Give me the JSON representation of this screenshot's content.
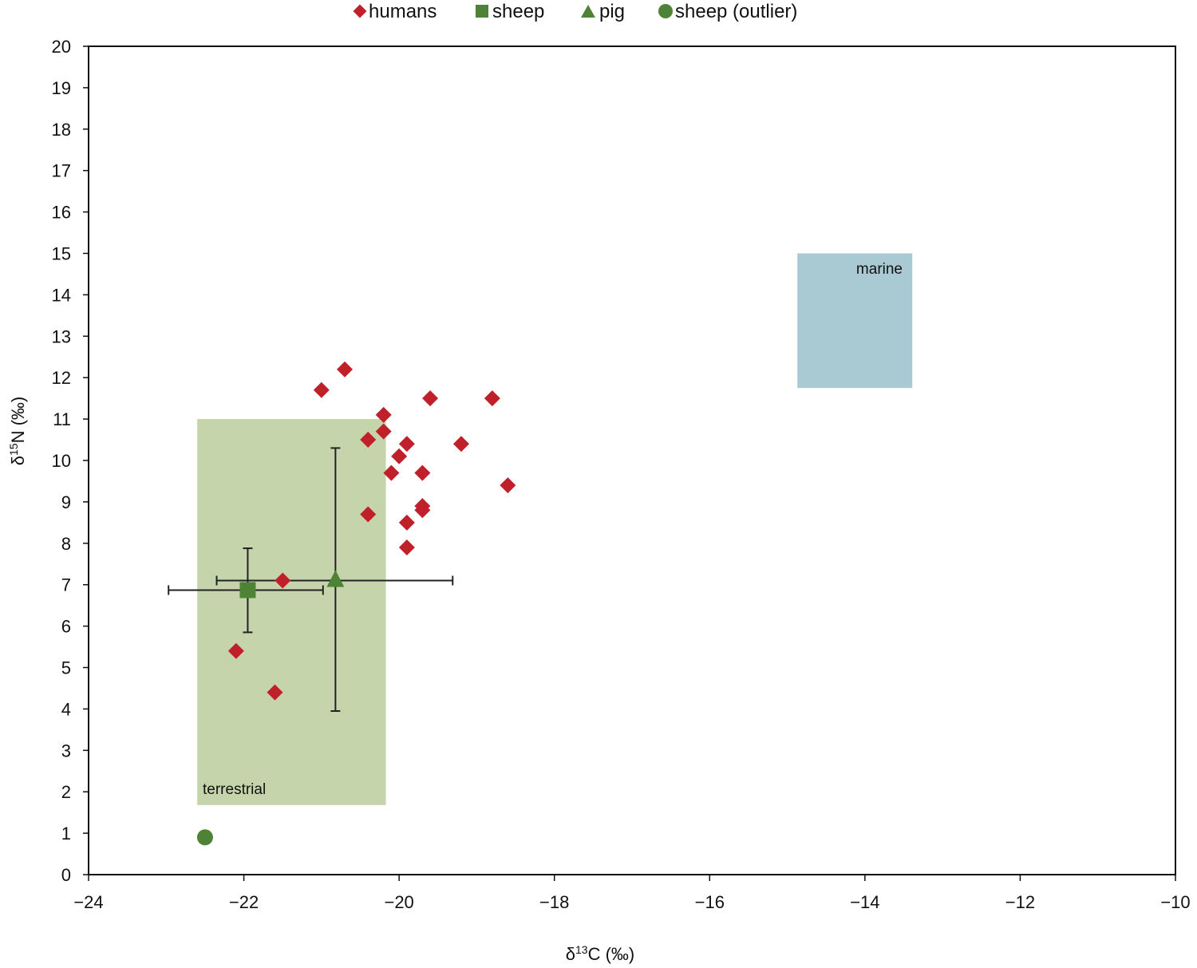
{
  "chart_data": {
    "type": "scatter",
    "title": "",
    "xlabel": "δ13C (‰)",
    "ylabel": "δ15N (‰)",
    "xlim": [
      -24,
      -10
    ],
    "ylim": [
      0,
      20
    ],
    "x_ticks": [
      -24,
      -22,
      -20,
      -18,
      -16,
      -14,
      -12,
      -10
    ],
    "x_tick_labels": [
      "−24",
      "−22",
      "−20",
      "−18",
      "−16",
      "−14",
      "−12",
      "−10"
    ],
    "y_ticks": [
      0,
      1,
      2,
      3,
      4,
      5,
      6,
      7,
      8,
      9,
      10,
      11,
      12,
      13,
      14,
      15,
      16,
      17,
      18,
      19,
      20
    ],
    "grid": false,
    "legend_position": "top",
    "legend": [
      {
        "label": "humans",
        "marker": "diamond",
        "color": "#c0202a"
      },
      {
        "label": "sheep",
        "marker": "square",
        "color": "#4e8236"
      },
      {
        "label": "pig",
        "marker": "triangle",
        "color": "#4e8236"
      },
      {
        "label": "sheep (outlier)",
        "marker": "circle",
        "color": "#4e8236"
      }
    ],
    "series": [
      {
        "name": "humans",
        "marker": "diamond",
        "color": "#c0202a",
        "points": [
          {
            "x": -20.7,
            "y": 12.2
          },
          {
            "x": -21.0,
            "y": 11.7
          },
          {
            "x": -20.2,
            "y": 11.1
          },
          {
            "x": -19.6,
            "y": 11.5
          },
          {
            "x": -18.8,
            "y": 11.5
          },
          {
            "x": -20.2,
            "y": 10.7
          },
          {
            "x": -20.4,
            "y": 10.5
          },
          {
            "x": -19.9,
            "y": 10.4
          },
          {
            "x": -19.2,
            "y": 10.4
          },
          {
            "x": -20.0,
            "y": 10.1
          },
          {
            "x": -20.1,
            "y": 9.7
          },
          {
            "x": -19.7,
            "y": 9.7
          },
          {
            "x": -18.6,
            "y": 9.4
          },
          {
            "x": -19.7,
            "y": 8.9
          },
          {
            "x": -19.7,
            "y": 8.8
          },
          {
            "x": -20.4,
            "y": 8.7
          },
          {
            "x": -19.9,
            "y": 8.5
          },
          {
            "x": -19.9,
            "y": 7.9
          },
          {
            "x": -21.5,
            "y": 7.1
          },
          {
            "x": -22.1,
            "y": 5.4
          },
          {
            "x": -21.6,
            "y": 4.4
          }
        ]
      },
      {
        "name": "sheep",
        "marker": "square",
        "color": "#4e8236",
        "points": [
          {
            "x": -21.95,
            "y": 6.87,
            "x_err": [
              -22.97,
              -20.98
            ],
            "y_err": [
              5.85,
              7.88
            ]
          }
        ]
      },
      {
        "name": "pig",
        "marker": "triangle",
        "color": "#4e8236",
        "points": [
          {
            "x": -20.82,
            "y": 7.1,
            "x_err": [
              -22.35,
              -19.31
            ],
            "y_err": [
              3.95,
              10.3
            ]
          }
        ]
      },
      {
        "name": "sheep (outlier)",
        "marker": "circle",
        "color": "#4e8236",
        "points": [
          {
            "x": -22.5,
            "y": 0.9
          }
        ]
      }
    ],
    "regions": [
      {
        "label": "terrestrial",
        "x0": -22.6,
        "x1": -20.17,
        "y0": 1.68,
        "y1": 11.0,
        "color": "#c5d4aa"
      },
      {
        "label": "marine",
        "x0": -14.87,
        "x1": -13.39,
        "y0": 11.75,
        "y1": 15.0,
        "color": "#a9c9d3"
      }
    ]
  },
  "labels": {
    "legend_humans": "humans",
    "legend_sheep": "sheep",
    "legend_pig": "pig",
    "legend_outlier": "sheep (outlier)",
    "x_axis_prefix": "δ",
    "x_axis_sup": "13",
    "x_axis_suffix": "C (‰)",
    "y_axis_prefix": "δ",
    "y_axis_sup": "15",
    "y_axis_suffix": "N  (‰)",
    "region_terrestrial": "terrestrial",
    "region_marine": "marine"
  }
}
